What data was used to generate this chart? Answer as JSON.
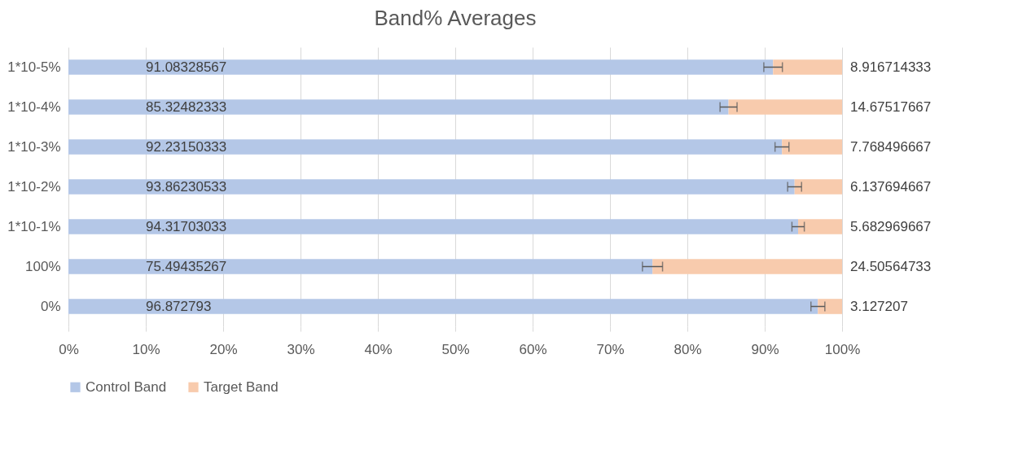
{
  "chart_data": {
    "type": "bar",
    "title": "Band% Averages",
    "orientation": "horizontal",
    "stacked": true,
    "categories": [
      "1*10-5%",
      "1*10-4%",
      "1*10-3%",
      "1*10-2%",
      "1*10-1%",
      "100%",
      "0%"
    ],
    "series": [
      {
        "name": "Control Band",
        "color": "#b4c7e7",
        "values": [
          91.08328567,
          85.32482333,
          92.23150333,
          93.86230533,
          94.31703033,
          75.49435267,
          96.872793
        ],
        "errors": [
          1.2,
          1.1,
          0.9,
          0.9,
          0.8,
          1.3,
          0.9
        ]
      },
      {
        "name": "Target Band",
        "color": "#f8cbad",
        "values": [
          8.916714333,
          14.67517667,
          7.768496667,
          6.137694667,
          5.682969667,
          24.50564733,
          3.127207
        ]
      }
    ],
    "data_labels": true,
    "xlim": [
      0,
      100
    ],
    "xticks": [
      {
        "value": 0,
        "label": "0%"
      },
      {
        "value": 10,
        "label": "10%"
      },
      {
        "value": 20,
        "label": "20%"
      },
      {
        "value": 30,
        "label": "30%"
      },
      {
        "value": 40,
        "label": "40%"
      },
      {
        "value": 50,
        "label": "50%"
      },
      {
        "value": 60,
        "label": "60%"
      },
      {
        "value": 70,
        "label": "70%"
      },
      {
        "value": 80,
        "label": "80%"
      },
      {
        "value": 90,
        "label": "90%"
      },
      {
        "value": 100,
        "label": "100%"
      }
    ],
    "grid": "x",
    "legend": "bottom"
  }
}
